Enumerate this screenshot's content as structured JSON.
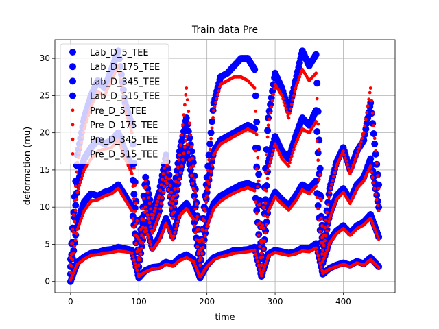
{
  "chart_data": {
    "type": "scatter",
    "title": "Train data Pre",
    "xlabel": "time",
    "ylabel": "deformation (mu)",
    "xlim": [
      -23,
      476
    ],
    "ylim": [
      -1.5,
      32.5
    ],
    "xticks": [
      0,
      100,
      200,
      300,
      400
    ],
    "yticks": [
      0,
      5,
      10,
      15,
      20,
      25,
      30
    ],
    "grid": true,
    "legend_position": "top-left",
    "colors": {
      "lab": "#0000ff",
      "pre": "#ff0000"
    },
    "series": [
      {
        "name": "Lab_D_5_TEE",
        "marker": "large-circle",
        "color": "#0000ff",
        "x": [
          0,
          10,
          20,
          30,
          40,
          50,
          60,
          70,
          80,
          90,
          100,
          110,
          120,
          130,
          140,
          150,
          160,
          170,
          180,
          190,
          200,
          210,
          220,
          230,
          240,
          250,
          260,
          270,
          280,
          290,
          300,
          310,
          320,
          330,
          340,
          350,
          360,
          370,
          380,
          390,
          400,
          410,
          420,
          430,
          440,
          452
        ],
        "y": [
          0,
          2.6,
          3.3,
          3.8,
          3.9,
          4.2,
          4.3,
          4.6,
          4.4,
          4.2,
          0.5,
          1.5,
          1.9,
          2.0,
          2.6,
          2.3,
          3.2,
          3.6,
          3.0,
          0.5,
          2.2,
          3.2,
          3.6,
          3.8,
          4.2,
          4.2,
          4.3,
          4.6,
          0.7,
          3.7,
          4.2,
          4.0,
          3.8,
          4.0,
          4.5,
          4.4,
          5.1,
          1.0,
          1.8,
          2.2,
          2.5,
          2.2,
          2.7,
          2.4,
          3.2,
          2.0
        ]
      },
      {
        "name": "Lab_D_175_TEE",
        "marker": "large-circle",
        "color": "#0000ff",
        "x": [
          0,
          10,
          20,
          30,
          40,
          50,
          60,
          70,
          80,
          90,
          100,
          110,
          120,
          130,
          140,
          150,
          160,
          170,
          180,
          190,
          200,
          210,
          220,
          230,
          240,
          250,
          260,
          270,
          280,
          290,
          300,
          310,
          320,
          330,
          340,
          350,
          360,
          370,
          380,
          390,
          400,
          410,
          420,
          430,
          440,
          452
        ],
        "y": [
          1.0,
          8.0,
          10.7,
          11.8,
          11.5,
          12.0,
          12.3,
          13.0,
          11.5,
          10.0,
          2.0,
          8.0,
          4.5,
          6.0,
          8.5,
          6.0,
          9.5,
          10.5,
          9.0,
          2.0,
          8.0,
          10.5,
          11.5,
          12.0,
          12.5,
          13.0,
          13.2,
          12.8,
          2.0,
          10.0,
          12.0,
          11.0,
          10.2,
          11.5,
          13.0,
          12.5,
          13.5,
          2.5,
          5.5,
          6.8,
          7.5,
          6.5,
          7.5,
          8.0,
          9.0,
          6.0
        ]
      },
      {
        "name": "Lab_D_345_TEE",
        "marker": "large-circle",
        "color": "#0000ff",
        "x": [
          0,
          10,
          20,
          30,
          40,
          50,
          60,
          70,
          80,
          90,
          100,
          110,
          120,
          130,
          140,
          150,
          160,
          170,
          180,
          190,
          200,
          210,
          220,
          230,
          240,
          250,
          260,
          270,
          280,
          290,
          300,
          310,
          320,
          330,
          340,
          350,
          360,
          370,
          380,
          390,
          400,
          410,
          420,
          430,
          440,
          452
        ],
        "y": [
          2.0,
          13.0,
          16.5,
          18.0,
          19.0,
          18.5,
          19.0,
          20.0,
          17.5,
          15.5,
          3.0,
          11.0,
          7.0,
          9.5,
          15.0,
          9.0,
          14.5,
          18.0,
          13.0,
          3.0,
          12.0,
          17.5,
          19.0,
          19.5,
          20.0,
          20.5,
          21.0,
          20.5,
          3.5,
          16.0,
          19.5,
          17.5,
          16.5,
          19.5,
          22.0,
          21.0,
          23.0,
          4.0,
          9.0,
          11.5,
          12.5,
          11.0,
          13.0,
          14.0,
          16.5,
          10.0
        ]
      },
      {
        "name": "Lab_D_515_TEE",
        "marker": "large-circle",
        "color": "#0000ff",
        "x": [
          0,
          10,
          20,
          30,
          40,
          50,
          60,
          70,
          80,
          90,
          100,
          110,
          120,
          130,
          140,
          150,
          160,
          170,
          180,
          190,
          200,
          210,
          220,
          230,
          240,
          250,
          260,
          270,
          280,
          290,
          300,
          310,
          320,
          330,
          340,
          350,
          360,
          370,
          380,
          390,
          400,
          410,
          420,
          430,
          440,
          452
        ],
        "y": [
          3.0,
          17.0,
          22.0,
          25.0,
          27.0,
          26.0,
          28.5,
          31.0,
          24.0,
          21.0,
          4.0,
          14.0,
          9.0,
          12.0,
          17.0,
          11.0,
          17.5,
          22.0,
          16.0,
          4.0,
          14.0,
          24.0,
          27.5,
          28.0,
          29.0,
          30.0,
          30.0,
          28.5,
          5.0,
          22.0,
          28.0,
          26.0,
          23.0,
          27.0,
          31.0,
          29.0,
          30.5,
          5.0,
          12.5,
          16.0,
          18.0,
          15.0,
          17.5,
          19.0,
          24.0,
          13.0
        ]
      },
      {
        "name": "Pre_D_5_TEE",
        "marker": "small-dot",
        "color": "#ff0000",
        "x": [
          0,
          10,
          20,
          30,
          40,
          50,
          60,
          70,
          80,
          90,
          100,
          110,
          120,
          130,
          140,
          150,
          160,
          170,
          180,
          190,
          200,
          210,
          220,
          230,
          240,
          250,
          260,
          270,
          280,
          290,
          300,
          310,
          320,
          330,
          340,
          350,
          360,
          370,
          380,
          390,
          400,
          410,
          420,
          430,
          440,
          452
        ],
        "y": [
          0.2,
          2.3,
          3.0,
          3.5,
          3.6,
          3.8,
          3.9,
          4.1,
          4.0,
          3.8,
          0.7,
          1.3,
          1.7,
          1.8,
          2.3,
          2.1,
          2.8,
          3.2,
          2.7,
          0.6,
          2.0,
          2.9,
          3.3,
          3.5,
          3.8,
          3.9,
          4.0,
          4.2,
          0.8,
          3.4,
          3.9,
          3.7,
          3.5,
          3.7,
          4.1,
          4.0,
          4.5,
          1.1,
          1.7,
          2.0,
          2.3,
          2.0,
          2.5,
          2.2,
          2.9,
          1.9
        ]
      },
      {
        "name": "Pre_D_175_TEE",
        "marker": "small-dot",
        "color": "#ff0000",
        "x": [
          0,
          10,
          20,
          30,
          40,
          50,
          60,
          70,
          80,
          90,
          100,
          110,
          120,
          130,
          140,
          150,
          160,
          170,
          180,
          190,
          200,
          210,
          220,
          230,
          240,
          250,
          260,
          270,
          280,
          290,
          300,
          310,
          320,
          330,
          340,
          350,
          360,
          370,
          380,
          390,
          400,
          410,
          420,
          430,
          440,
          452
        ],
        "y": [
          1.2,
          7.0,
          9.5,
          10.8,
          11.0,
          11.5,
          11.8,
          12.5,
          11.0,
          9.5,
          2.2,
          7.2,
          4.2,
          5.5,
          7.8,
          5.6,
          8.8,
          9.8,
          8.4,
          2.2,
          7.4,
          9.8,
          10.8,
          11.4,
          11.9,
          12.3,
          12.6,
          12.2,
          2.2,
          9.4,
          11.4,
          10.4,
          9.6,
          10.8,
          12.3,
          11.8,
          12.8,
          2.7,
          5.2,
          6.4,
          7.1,
          6.2,
          7.1,
          7.6,
          8.5,
          5.7
        ]
      },
      {
        "name": "Pre_D_345_TEE",
        "marker": "small-dot",
        "color": "#ff0000",
        "x": [
          0,
          10,
          20,
          30,
          40,
          50,
          60,
          70,
          80,
          90,
          100,
          110,
          120,
          130,
          140,
          150,
          160,
          170,
          180,
          190,
          200,
          210,
          220,
          230,
          240,
          250,
          260,
          270,
          280,
          290,
          300,
          310,
          320,
          330,
          340,
          350,
          360,
          370,
          380,
          390,
          400,
          410,
          420,
          430,
          440,
          452
        ],
        "y": [
          2.2,
          12.0,
          15.0,
          16.5,
          17.5,
          17.8,
          18.0,
          19.0,
          16.5,
          14.5,
          3.2,
          10.0,
          6.5,
          9.0,
          14.0,
          8.5,
          13.8,
          19.5,
          12.5,
          3.2,
          11.5,
          17.0,
          18.5,
          19.0,
          19.5,
          20.0,
          20.5,
          20.0,
          3.8,
          15.0,
          18.5,
          16.5,
          15.5,
          18.5,
          20.5,
          20.0,
          21.5,
          4.2,
          8.5,
          11.0,
          12.0,
          10.5,
          12.5,
          13.5,
          15.5,
          9.5
        ]
      },
      {
        "name": "Pre_D_515_TEE",
        "marker": "small-dot",
        "color": "#ff0000",
        "x": [
          0,
          10,
          20,
          30,
          40,
          50,
          60,
          70,
          80,
          90,
          100,
          110,
          120,
          130,
          140,
          150,
          160,
          170,
          180,
          190,
          200,
          210,
          220,
          230,
          240,
          250,
          260,
          270,
          280,
          290,
          300,
          310,
          320,
          330,
          340,
          350,
          360,
          370,
          380,
          390,
          400,
          410,
          420,
          430,
          440,
          452
        ],
        "y": [
          3.2,
          16.0,
          20.5,
          23.5,
          25.5,
          25.0,
          27.0,
          29.0,
          23.0,
          20.0,
          4.2,
          13.5,
          8.5,
          11.5,
          16.5,
          10.5,
          17.0,
          26.0,
          15.5,
          4.2,
          13.5,
          23.0,
          26.5,
          27.0,
          27.5,
          27.5,
          27.0,
          26.0,
          5.2,
          21.0,
          26.5,
          25.0,
          22.0,
          26.0,
          28.5,
          27.0,
          28.0,
          5.2,
          12.0,
          15.5,
          17.5,
          14.5,
          17.0,
          20.0,
          26.0,
          12.5
        ]
      }
    ]
  }
}
